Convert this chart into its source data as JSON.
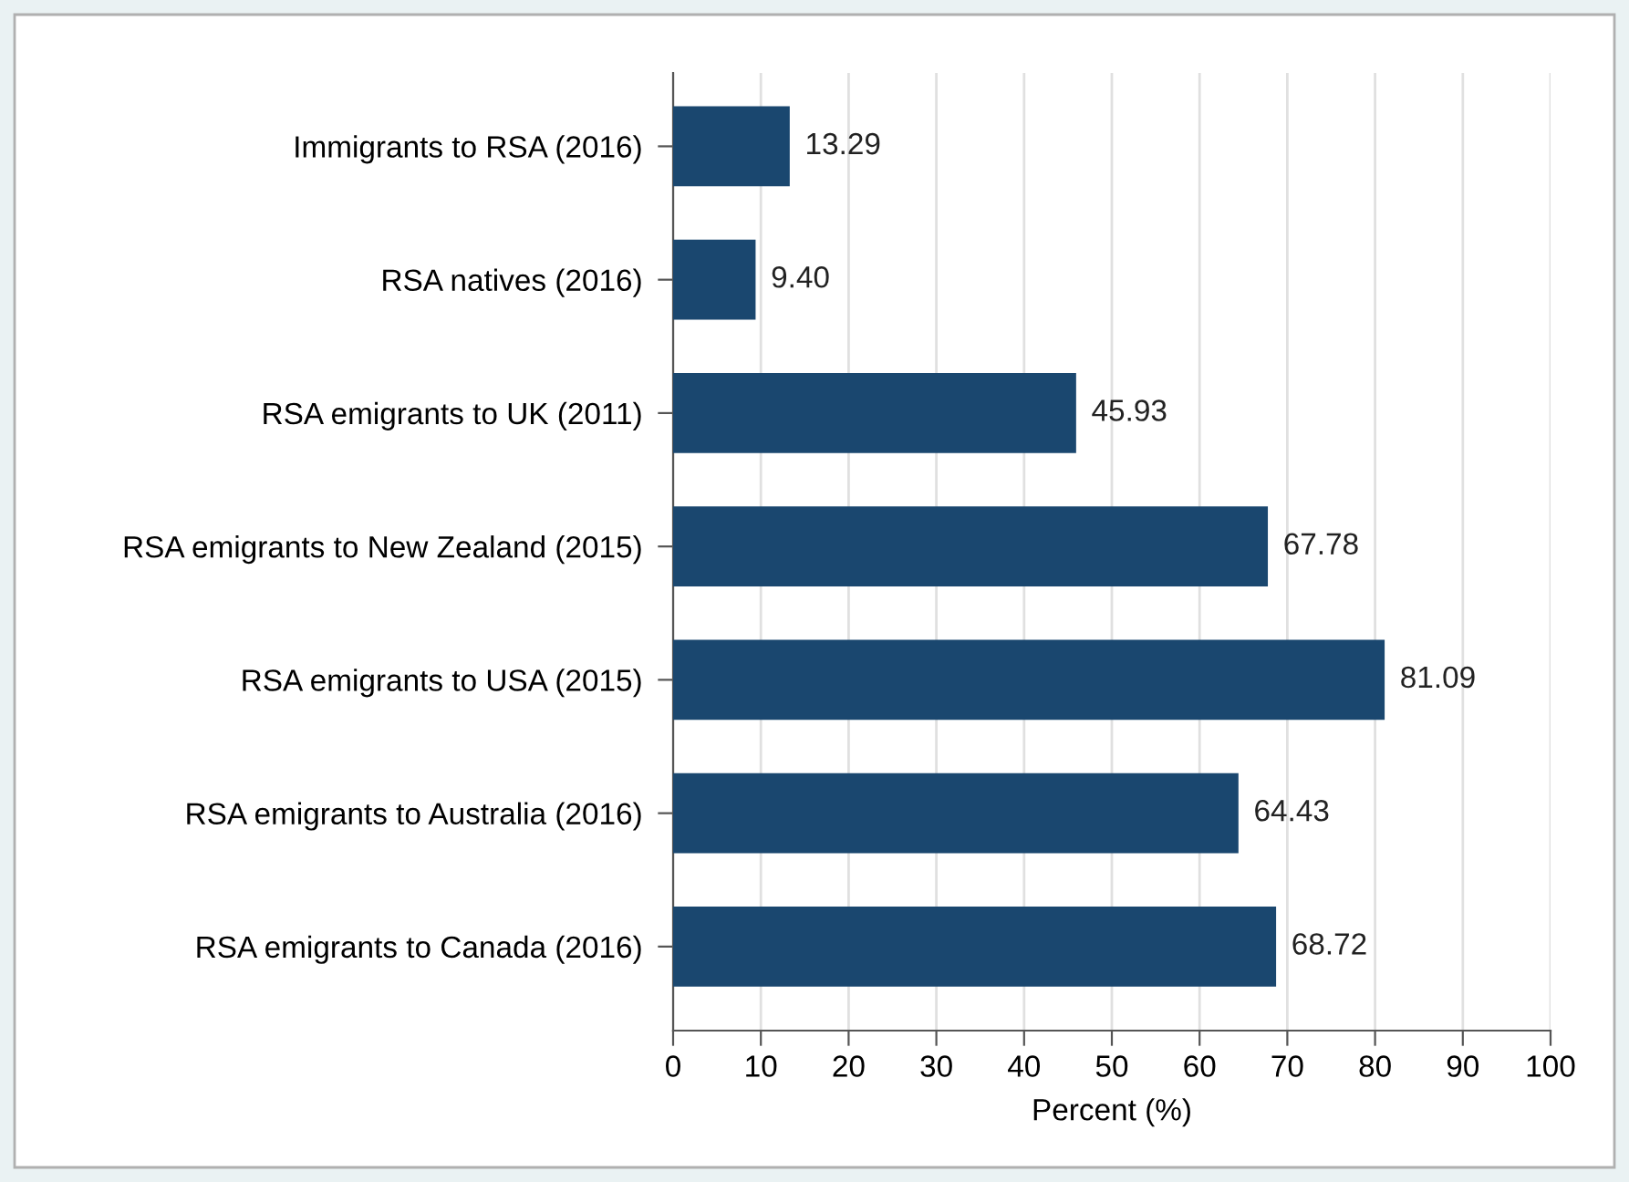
{
  "chart_data": {
    "type": "bar",
    "orientation": "horizontal",
    "xlabel": "Percent (%)",
    "categories": [
      "Immigrants to RSA (2016)",
      "RSA natives (2016)",
      "RSA emigrants to UK (2011)",
      "RSA emigrants to New Zealand (2015)",
      "RSA emigrants to USA (2015)",
      "RSA emigrants to Australia (2016)",
      "RSA emigrants to Canada (2016)"
    ],
    "values": [
      13.29,
      9.4,
      45.93,
      67.78,
      81.09,
      64.43,
      68.72
    ],
    "value_labels": [
      "13.29",
      "9.40",
      "45.93",
      "67.78",
      "81.09",
      "64.43",
      "68.72"
    ],
    "color": "#1a476f",
    "xlim": [
      0,
      100
    ],
    "xticks": [
      0,
      10,
      20,
      30,
      40,
      50,
      60,
      70,
      80,
      90,
      100
    ],
    "grid": "x",
    "legend": false
  }
}
